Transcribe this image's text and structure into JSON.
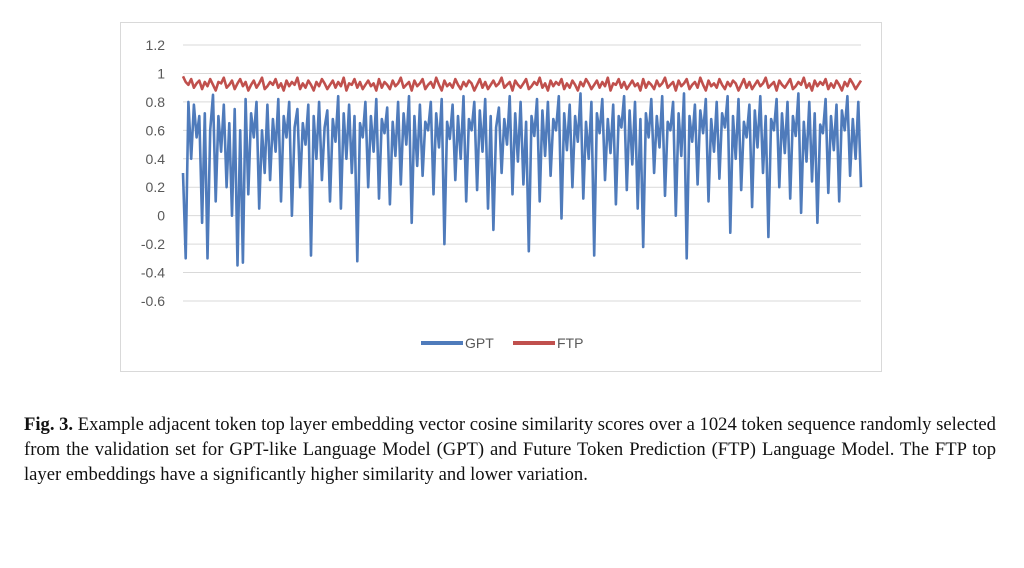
{
  "chart_data": {
    "type": "line",
    "title": "",
    "xlabel": "",
    "ylabel": "",
    "ylim": [
      -0.6,
      1.2
    ],
    "yticks": [
      "1.2",
      "1",
      "0.8",
      "0.6",
      "0.4",
      "0.2",
      "0",
      "-0.2",
      "-0.4",
      "-0.6"
    ],
    "grid": true,
    "legend_position": "bottom",
    "x_count": 1024,
    "series": [
      {
        "name": "GPT",
        "color": "#4f7bbb",
        "values": [
          0.3,
          -0.3,
          0.8,
          0.4,
          0.78,
          0.55,
          0.7,
          -0.05,
          0.72,
          -0.3,
          0.6,
          0.85,
          0.1,
          0.7,
          0.45,
          0.78,
          0.2,
          0.65,
          0.0,
          0.75,
          -0.35,
          0.6,
          -0.33,
          0.82,
          0.15,
          0.72,
          0.55,
          0.8,
          0.05,
          0.6,
          0.3,
          0.78,
          0.25,
          0.68,
          0.45,
          0.82,
          0.1,
          0.7,
          0.55,
          0.8,
          0.0,
          0.62,
          0.75,
          0.2,
          0.65,
          0.5,
          0.78,
          -0.28,
          0.7,
          0.4,
          0.8,
          0.25,
          0.62,
          0.74,
          0.1,
          0.68,
          0.52,
          0.84,
          0.05,
          0.72,
          0.4,
          0.78,
          0.3,
          0.7,
          -0.32,
          0.65,
          0.55,
          0.8,
          0.2,
          0.7,
          0.45,
          0.82,
          0.12,
          0.68,
          0.58,
          0.76,
          0.08,
          0.66,
          0.42,
          0.8,
          0.22,
          0.72,
          0.5,
          0.84,
          -0.05,
          0.7,
          0.35,
          0.78,
          0.28,
          0.66,
          0.6,
          0.8,
          0.15,
          0.72,
          0.48,
          0.82,
          -0.2,
          0.66,
          0.54,
          0.78,
          0.25,
          0.7,
          0.4,
          0.84,
          0.1,
          0.68,
          0.6,
          0.8,
          0.18,
          0.74,
          0.45,
          0.82,
          0.05,
          0.7,
          -0.1,
          0.62,
          0.76,
          0.3,
          0.68,
          0.5,
          0.84,
          0.15,
          0.72,
          0.38,
          0.8,
          0.22,
          0.66,
          -0.25,
          0.7,
          0.56,
          0.82,
          0.1,
          0.74,
          0.42,
          0.8,
          0.28,
          0.68,
          0.6,
          0.84,
          -0.02,
          0.72,
          0.46,
          0.78,
          0.2,
          0.7,
          0.52,
          0.86,
          0.12,
          0.66,
          0.4,
          0.8,
          -0.28,
          0.72,
          0.58,
          0.82,
          0.25,
          0.68,
          0.44,
          0.78,
          0.08,
          0.7,
          0.62,
          0.84,
          0.18,
          0.74,
          0.36,
          0.8,
          0.05,
          0.68,
          -0.22,
          0.72,
          0.55,
          0.82,
          0.3,
          0.7,
          0.48,
          0.84,
          0.14,
          0.66,
          0.6,
          0.8,
          0.0,
          0.72,
          0.42,
          0.86,
          -0.3,
          0.7,
          0.52,
          0.78,
          0.22,
          0.74,
          0.58,
          0.82,
          0.1,
          0.68,
          0.45,
          0.8,
          0.26,
          0.72,
          0.62,
          0.84,
          -0.12,
          0.7,
          0.4,
          0.82,
          0.18,
          0.66,
          0.55,
          0.78,
          0.06,
          0.74,
          0.48,
          0.84,
          0.3,
          0.7,
          -0.15,
          0.68,
          0.6,
          0.82,
          0.2,
          0.72,
          0.44,
          0.8,
          0.12,
          0.7,
          0.56,
          0.86,
          0.02,
          0.66,
          0.38,
          0.8,
          0.24,
          0.72,
          -0.05,
          0.64,
          0.58,
          0.82,
          0.16,
          0.7,
          0.46,
          0.78,
          0.1,
          0.74,
          0.6,
          0.84,
          0.28,
          0.68,
          0.4,
          0.8,
          0.2
        ],
        "note_values": "sampled approximately every 4th token"
      },
      {
        "name": "FTP",
        "color": "#c0504d",
        "values": [
          0.98,
          0.94,
          0.92,
          0.96,
          0.9,
          0.93,
          0.95,
          0.89,
          0.94,
          0.91,
          0.96,
          0.92,
          0.88,
          0.94,
          0.93,
          0.97,
          0.9,
          0.92,
          0.95,
          0.89,
          0.93,
          0.96,
          0.91,
          0.94,
          0.88,
          0.92,
          0.95,
          0.9,
          0.93,
          0.97,
          0.89,
          0.91,
          0.94,
          0.92,
          0.96,
          0.9,
          0.93,
          0.88,
          0.95,
          0.91,
          0.94,
          0.92,
          0.97,
          0.89,
          0.93,
          0.9,
          0.95,
          0.92,
          0.88,
          0.94,
          0.91,
          0.96,
          0.93,
          0.89,
          0.92,
          0.95,
          0.9,
          0.94,
          0.91,
          0.97,
          0.88,
          0.93,
          0.92,
          0.96,
          0.9,
          0.94,
          0.89,
          0.92,
          0.95,
          0.91,
          0.93,
          0.88,
          0.96,
          0.9,
          0.94,
          0.92,
          0.89,
          0.95,
          0.91,
          0.93,
          0.97,
          0.9,
          0.92,
          0.94,
          0.88,
          0.95,
          0.91,
          0.93,
          0.96,
          0.89,
          0.92,
          0.94,
          0.9,
          0.97,
          0.92,
          0.88,
          0.95,
          0.91,
          0.93,
          0.9,
          0.96,
          0.92,
          0.89,
          0.94,
          0.91,
          0.95,
          0.93,
          0.88,
          0.92,
          0.96,
          0.9,
          0.94,
          0.89,
          0.92,
          0.95,
          0.91,
          0.93,
          0.97,
          0.9,
          0.92,
          0.94,
          0.88,
          0.95,
          0.92,
          0.9,
          0.93,
          0.96,
          0.89,
          0.91,
          0.94,
          0.92,
          0.97,
          0.9,
          0.93,
          0.88,
          0.95,
          0.91,
          0.94,
          0.92,
          0.96,
          0.89,
          0.93,
          0.9,
          0.95,
          0.92,
          0.88,
          0.94,
          0.91,
          0.96,
          0.93,
          0.89,
          0.92,
          0.95,
          0.9,
          0.94,
          0.91,
          0.97,
          0.88,
          0.93,
          0.92,
          0.96,
          0.9,
          0.94,
          0.89,
          0.92,
          0.95,
          0.91,
          0.93,
          0.88,
          0.96,
          0.9,
          0.94,
          0.92,
          0.89,
          0.95,
          0.91,
          0.93,
          0.97,
          0.9,
          0.92,
          0.94,
          0.88,
          0.95,
          0.91,
          0.93,
          0.96,
          0.89,
          0.92,
          0.94,
          0.9,
          0.97,
          0.92,
          0.88,
          0.95,
          0.91,
          0.93,
          0.9,
          0.96,
          0.92,
          0.89,
          0.94,
          0.91,
          0.95,
          0.93,
          0.88,
          0.92,
          0.96,
          0.9,
          0.94,
          0.89,
          0.92,
          0.95,
          0.91,
          0.93,
          0.97,
          0.9,
          0.92,
          0.94,
          0.88,
          0.95,
          0.92,
          0.9,
          0.93,
          0.96,
          0.89,
          0.91,
          0.94,
          0.92,
          0.97,
          0.9,
          0.93,
          0.88,
          0.95,
          0.91,
          0.94,
          0.92,
          0.96,
          0.89,
          0.93,
          0.9,
          0.95,
          0.92,
          0.88,
          0.94,
          0.91,
          0.96,
          0.93,
          0.89,
          0.92,
          0.95
        ]
      }
    ]
  },
  "caption": {
    "label": "Fig. 3.",
    "text": " Example adjacent token top layer embedding vector cosine similarity scores over a 1024 token sequence randomly selected from the validation set for GPT-like Language Model (GPT) and Future Token Prediction (FTP) Language Model. The FTP top layer embeddings have a significantly higher similarity and lower variation."
  }
}
